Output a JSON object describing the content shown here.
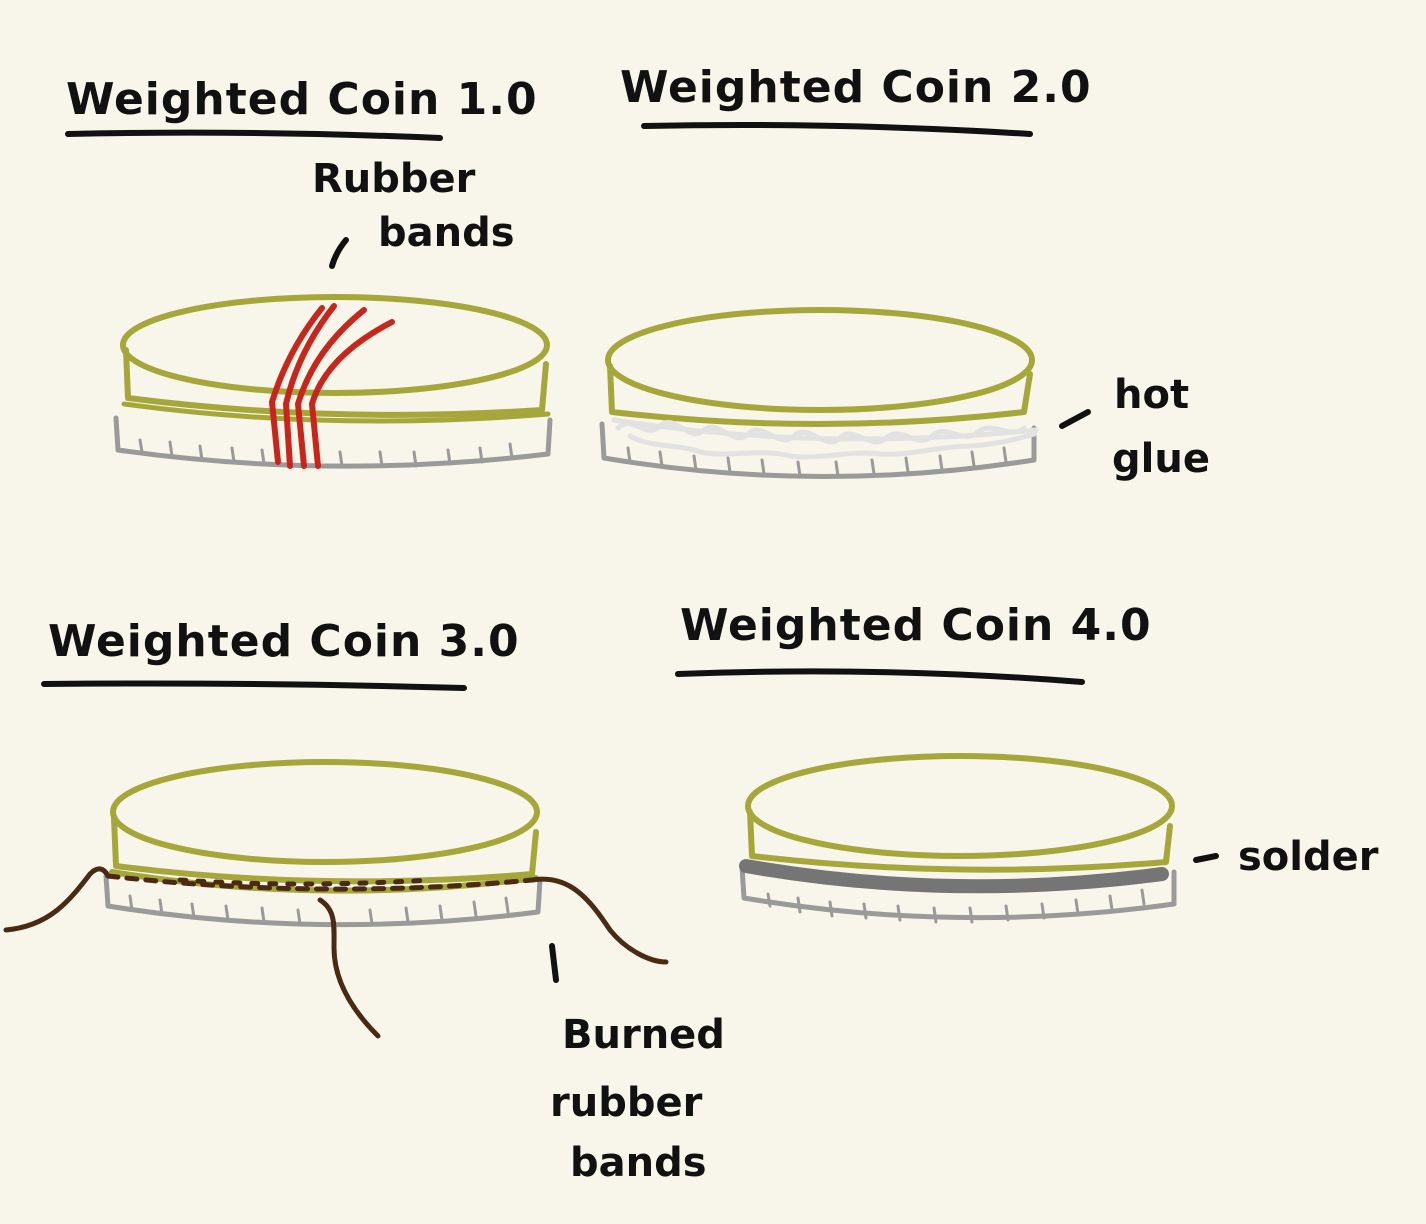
{
  "colors": {
    "background": "#f8f5ea",
    "ink": "#111111",
    "coin": "#a6a73a",
    "base_coin": "#9a9a9a",
    "rubber_band": "#c8261c",
    "hot_glue": "#e6e6e6",
    "burned_rubber": "#4a2a12",
    "solder": "#757575"
  },
  "panels": [
    {
      "title": "Weighted Coin 1.0",
      "labels": [
        "Rubber",
        "bands"
      ],
      "feature": "rubber-bands"
    },
    {
      "title": "Weighted Coin 2.0",
      "labels": [
        "hot",
        "glue"
      ],
      "feature": "hot-glue"
    },
    {
      "title": "Weighted Coin 3.0",
      "labels": [
        "Burned",
        "rubber",
        "bands"
      ],
      "feature": "burned-rubber-bands"
    },
    {
      "title": "Weighted Coin 4.0",
      "labels": [
        "solder"
      ],
      "feature": "solder"
    }
  ]
}
